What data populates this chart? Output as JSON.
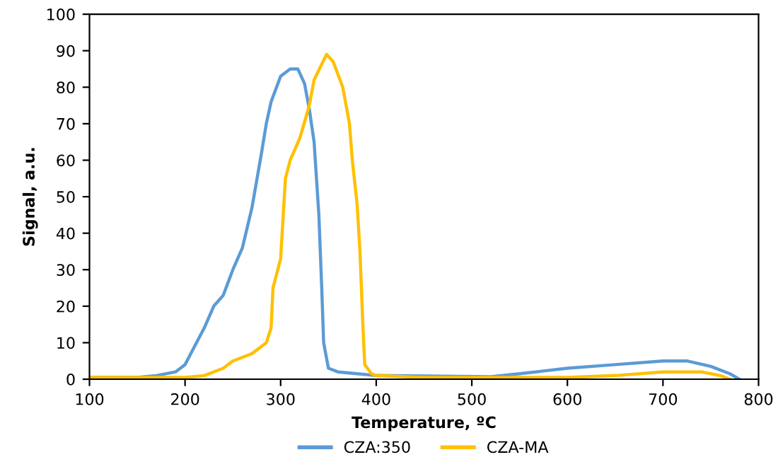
{
  "chart_data": {
    "type": "line",
    "xlabel": "Temperature, ºC",
    "ylabel": "Signal, a.u.",
    "xlim": [
      100,
      800
    ],
    "ylim": [
      0,
      100
    ],
    "xticks": [
      100,
      200,
      300,
      400,
      500,
      600,
      700,
      800
    ],
    "yticks": [
      0,
      10,
      20,
      30,
      40,
      50,
      60,
      70,
      80,
      90,
      100
    ],
    "grid": false,
    "legend": "bottom",
    "marker": "none",
    "line_style": "solid",
    "series": [
      {
        "name": "CZA:350",
        "color": "#5b9bd5",
        "x": [
          100,
          150,
          170,
          190,
          200,
          210,
          220,
          230,
          240,
          250,
          260,
          270,
          280,
          285,
          290,
          300,
          310,
          318,
          325,
          330,
          335,
          340,
          343,
          345,
          350,
          360,
          400,
          450,
          520,
          550,
          600,
          650,
          700,
          725,
          750,
          770,
          780
        ],
        "values": [
          0.5,
          0.5,
          1,
          2,
          4,
          9,
          14,
          20,
          23,
          30,
          36,
          47,
          62,
          70,
          76,
          83,
          85,
          85,
          81,
          74,
          65,
          45,
          25,
          10,
          3,
          2,
          1,
          0.9,
          0.7,
          1.5,
          3,
          4,
          5,
          5,
          3.5,
          1.5,
          0
        ]
      },
      {
        "name": "CZA-MA",
        "color": "#ffc000",
        "x": [
          100,
          200,
          220,
          240,
          250,
          270,
          285,
          290,
          292,
          300,
          305,
          310,
          320,
          330,
          335,
          348,
          355,
          365,
          372,
          375,
          380,
          383,
          386,
          388,
          395,
          400,
          450,
          600,
          650,
          700,
          740,
          760,
          770
        ],
        "values": [
          0.5,
          0.5,
          1,
          3,
          5,
          7,
          10,
          14,
          25,
          33,
          55,
          60,
          66,
          75,
          82,
          89,
          87,
          80,
          70,
          60,
          48,
          35,
          15,
          4,
          1.5,
          1,
          0.5,
          0.5,
          1,
          2,
          2,
          1,
          0
        ]
      }
    ]
  }
}
